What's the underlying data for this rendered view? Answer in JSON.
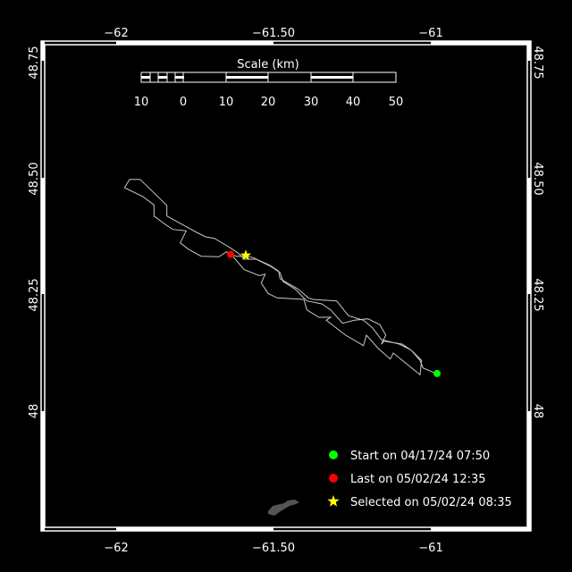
{
  "map": {
    "lon_range": [
      -62.25,
      -60.875
    ],
    "lat_range": [
      47.75,
      48.75
    ],
    "lon_ticks": [
      {
        "value": -62,
        "label": "−62"
      },
      {
        "value": -61.5,
        "label": "−61.50"
      },
      {
        "value": -61,
        "label": "−61"
      }
    ],
    "lat_ticks": [
      {
        "value": 48.75,
        "label": "48.75"
      },
      {
        "value": 48.5,
        "label": "48.50"
      },
      {
        "value": 48.25,
        "label": "48.25"
      },
      {
        "value": 48,
        "label": "48"
      }
    ],
    "colors": {
      "background": "#000000",
      "track": "#c8c8c8",
      "land": "#555555",
      "start": "#00ff00",
      "last": "#ff0000",
      "selected": "#ffff00"
    }
  },
  "scale_bar": {
    "title": "Scale (km)",
    "labels": [
      "10",
      "0",
      "10",
      "20",
      "30",
      "40",
      "50"
    ]
  },
  "markers": {
    "start": {
      "lon": -60.98,
      "lat": 48.081,
      "icon": "green-circle"
    },
    "last": {
      "lon": -61.636,
      "lat": 48.337,
      "icon": "red-circle"
    },
    "selected": {
      "lon": -61.588,
      "lat": 48.335,
      "icon": "yellow-star"
    }
  },
  "legend": [
    {
      "icon": "green-circle",
      "label": "Start on 04/17/24 07:50"
    },
    {
      "icon": "red-circle",
      "label": "Last on 05/02/24 12:35"
    },
    {
      "icon": "yellow-star",
      "label": "Selected on 05/02/24 08:35"
    }
  ]
}
